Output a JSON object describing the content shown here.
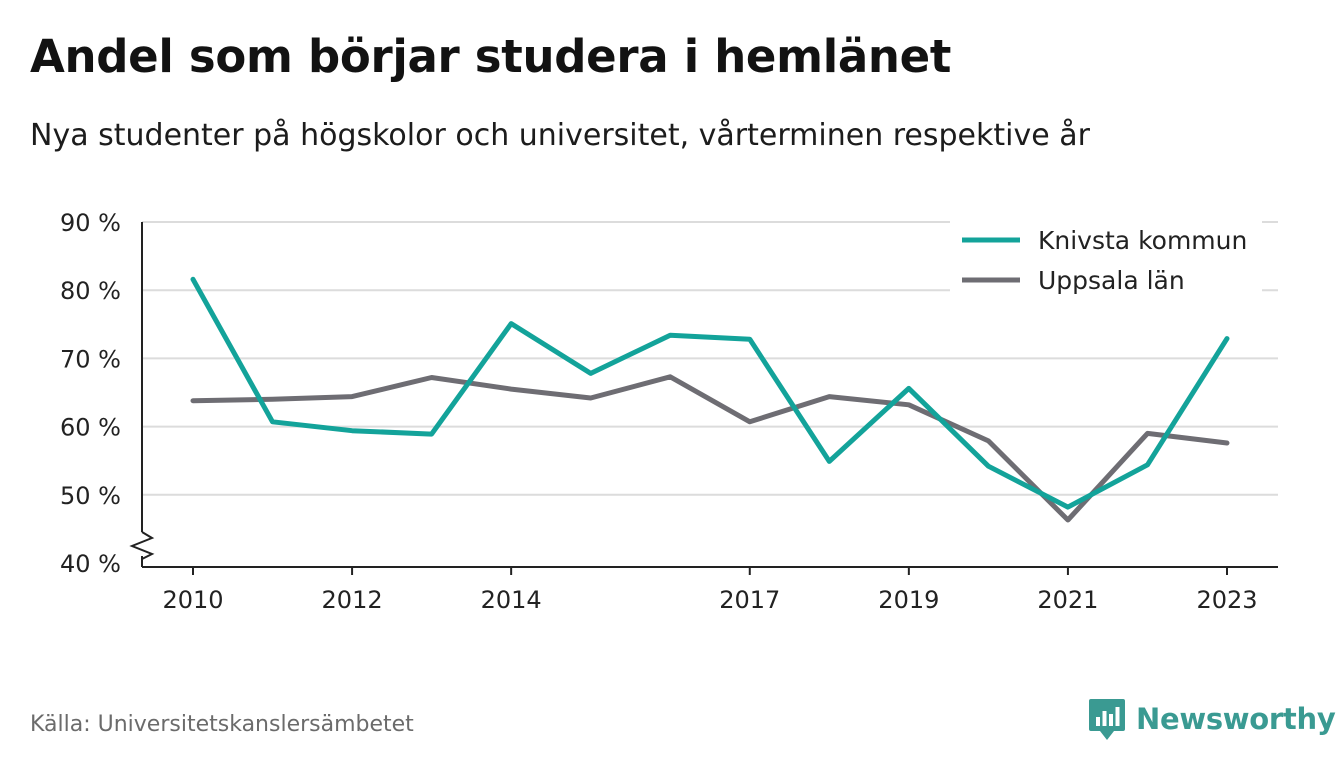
{
  "header": {
    "title": "Andel som börjar studera i hemlänet",
    "subtitle": "Nya studenter på högskolor och universitet, vårterminen respektive år"
  },
  "footer": {
    "source": "Källa: Universitetskanslersämbetet",
    "brand": "Newsworthy"
  },
  "colors": {
    "knivsta": "#13a39a",
    "uppsala": "#6e6d73",
    "grid": "#dcdcdc",
    "axis": "#222222",
    "brand": "#3a9a92"
  },
  "chart_data": {
    "type": "line",
    "title": "Andel som börjar studera i hemlänet",
    "subtitle": "Nya studenter på högskolor och universitet, vårterminen respektive år",
    "xlabel": "",
    "ylabel": "",
    "x": [
      2010,
      2011,
      2012,
      2013,
      2014,
      2015,
      2016,
      2017,
      2018,
      2019,
      2020,
      2021,
      2022,
      2023
    ],
    "x_tick_labels": [
      "2010",
      "2012",
      "2014",
      "2017",
      "2019",
      "2021",
      "2023"
    ],
    "y_ticks": [
      40,
      50,
      60,
      70,
      80,
      90
    ],
    "y_tick_labels": [
      "40 %",
      "50 %",
      "60 %",
      "70 %",
      "80 %",
      "90 %"
    ],
    "ylim": [
      40,
      90
    ],
    "y_axis_break": true,
    "grid": true,
    "legend_position": "top-right",
    "series": [
      {
        "name": "Knivsta kommun",
        "color": "#13a39a",
        "values": [
          81.6,
          60.7,
          59.4,
          58.9,
          75.1,
          67.8,
          73.4,
          72.8,
          54.9,
          65.6,
          54.2,
          48.2,
          54.4,
          72.9
        ]
      },
      {
        "name": "Uppsala län",
        "color": "#6e6d73",
        "values": [
          63.8,
          64.0,
          64.4,
          67.2,
          65.5,
          64.2,
          67.3,
          60.7,
          64.4,
          63.2,
          57.9,
          46.3,
          59.0,
          57.6
        ]
      }
    ]
  }
}
